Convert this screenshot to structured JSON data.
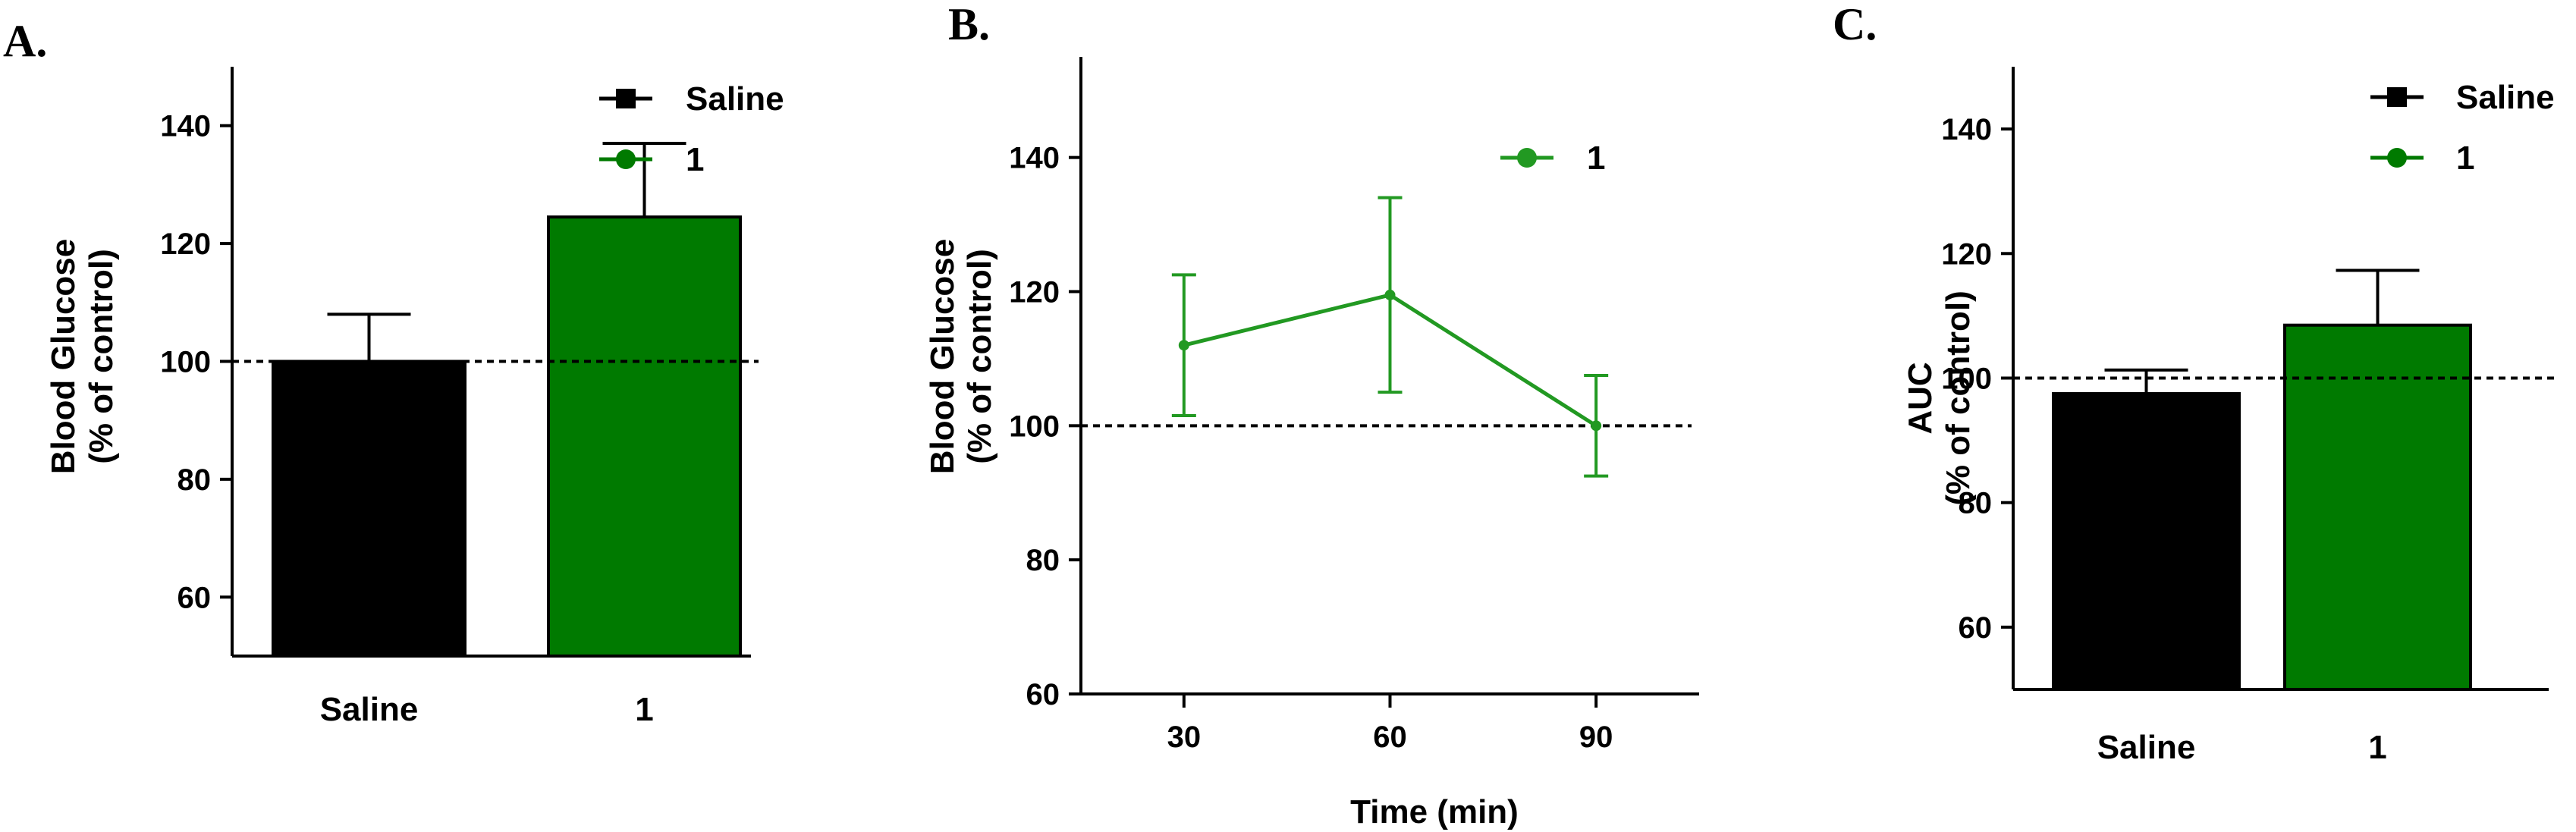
{
  "colors": {
    "saline": "#000000",
    "treatment": "#007a00",
    "axis": "#000000"
  },
  "chart_data": [
    {
      "panel": "A.",
      "type": "bar",
      "categories": [
        "Saline",
        "1"
      ],
      "values": [
        100,
        124.5
      ],
      "errors": [
        8,
        12.5
      ],
      "ylabel_lines": [
        "Blood Glucose",
        "(% of control)"
      ],
      "xlabel": "",
      "ylim": [
        50,
        150
      ],
      "yticks": [
        60,
        80,
        100,
        120,
        140
      ],
      "reference_line": 100,
      "legend": [
        {
          "label": "Saline",
          "marker": "square",
          "color": "#000000"
        },
        {
          "label": "1",
          "marker": "circle",
          "color": "#007a00"
        }
      ]
    },
    {
      "panel": "B.",
      "type": "line",
      "x": [
        30,
        60,
        90
      ],
      "xticks": [
        30,
        60,
        90
      ],
      "xlim": [
        15,
        105
      ],
      "series": [
        {
          "name": "1",
          "values": [
            112,
            119.5,
            100
          ],
          "errors": [
            10.5,
            14.5,
            7.5
          ],
          "color": "#229922"
        }
      ],
      "ylabel_lines": [
        "Blood Glucose",
        "(% of control)"
      ],
      "xlabel": "Time (min)",
      "ylim": [
        60,
        155
      ],
      "yticks": [
        60,
        80,
        100,
        120,
        140
      ],
      "reference_line": 100,
      "legend": [
        {
          "label": "1",
          "marker": "circle",
          "color": "#229922"
        }
      ]
    },
    {
      "panel": "C.",
      "type": "bar",
      "categories": [
        "Saline",
        "1"
      ],
      "values": [
        97.5,
        108.5
      ],
      "errors": [
        3.8,
        8.8
      ],
      "ylabel_lines": [
        "AUC",
        "(% of control)"
      ],
      "xlabel": "",
      "ylim": [
        50,
        150
      ],
      "yticks": [
        60,
        80,
        100,
        120,
        140
      ],
      "reference_line": 100,
      "legend": [
        {
          "label": "Saline",
          "marker": "square",
          "color": "#000000"
        },
        {
          "label": "1",
          "marker": "circle",
          "color": "#007a00"
        }
      ]
    }
  ]
}
